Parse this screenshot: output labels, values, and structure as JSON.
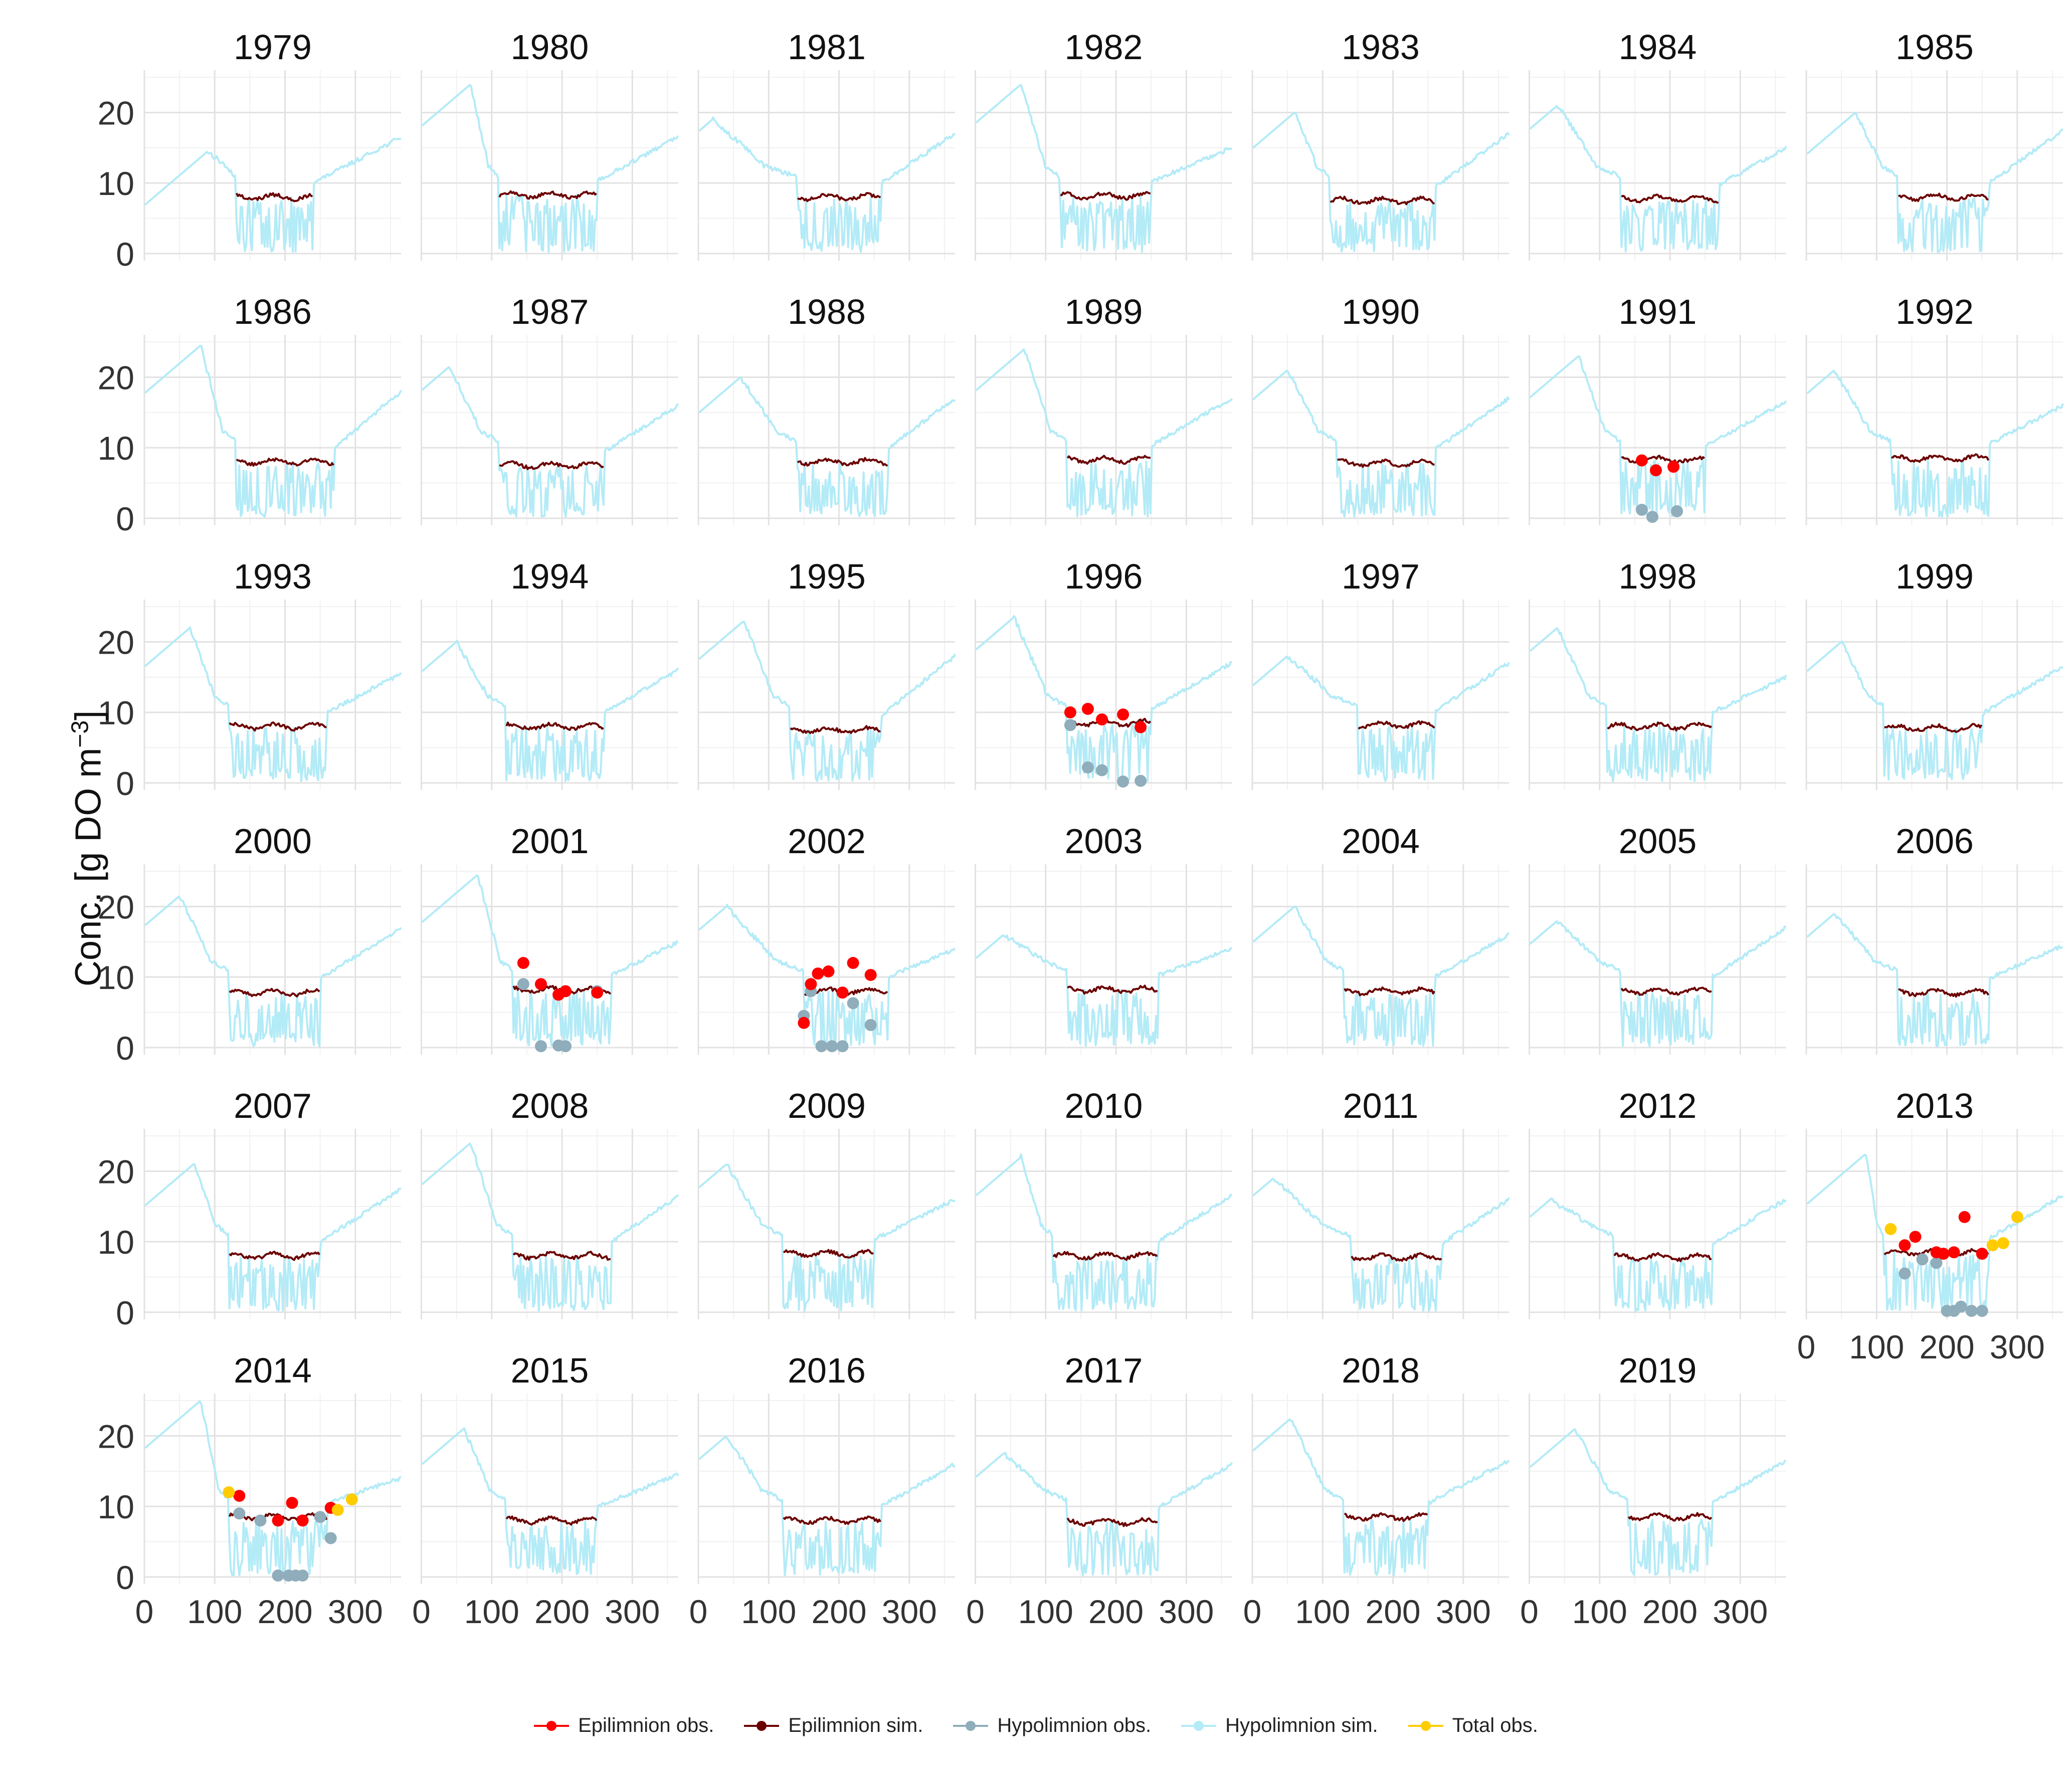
{
  "chart_data": {
    "type": "line",
    "ylabel": "Conc. [g DO m",
    "ylabel_sup": "−3",
    "ylabel_end": "]",
    "xlim": [
      0,
      365
    ],
    "ylim": [
      -1,
      26
    ],
    "xticks": [
      0,
      100,
      200,
      300
    ],
    "yticks": [
      0,
      10,
      20
    ],
    "grid": true,
    "legend_position": "bottom",
    "colors": {
      "epi_obs": "#ff0000",
      "epi_sim": "#6b0000",
      "hypo_obs": "#8fadbb",
      "hypo_sim": "#b3ebf7",
      "total_obs": "#ffcc00"
    },
    "legend": [
      {
        "key": "epi_obs",
        "label": "Epilimnion obs.",
        "style": "point"
      },
      {
        "key": "epi_sim",
        "label": "Epilimnion sim.",
        "style": "line"
      },
      {
        "key": "hypo_obs",
        "label": "Hypolimnion obs.",
        "style": "point"
      },
      {
        "key": "hypo_sim",
        "label": "Hypolimnion sim.",
        "style": "line"
      },
      {
        "key": "total_obs",
        "label": "Total obs.",
        "style": "point"
      }
    ],
    "panels": [
      {
        "year": "1979",
        "peak": 14.5,
        "peak_day": 90,
        "strat": [
          130,
          240
        ],
        "epi": 8.0,
        "end": 16.5
      },
      {
        "year": "1980",
        "peak": 24,
        "peak_day": 70,
        "strat": [
          110,
          250
        ],
        "epi": 8.3,
        "end": 16.5
      },
      {
        "year": "1981",
        "peak": 19,
        "peak_day": 20,
        "strat": [
          140,
          260
        ],
        "epi": 8.0,
        "end": 17
      },
      {
        "year": "1982",
        "peak": 24,
        "peak_day": 65,
        "strat": [
          120,
          250
        ],
        "epi": 8.2,
        "end": 15
      },
      {
        "year": "1983",
        "peak": 20,
        "peak_day": 60,
        "strat": [
          110,
          260
        ],
        "epi": 7.5,
        "end": 17
      },
      {
        "year": "1984",
        "peak": 21,
        "peak_day": 40,
        "strat": [
          130,
          270
        ],
        "epi": 7.8,
        "end": 15
      },
      {
        "year": "1985",
        "peak": 20,
        "peak_day": 70,
        "strat": [
          130,
          260
        ],
        "epi": 8.0,
        "end": 17.5
      },
      {
        "year": "1986",
        "peak": 24.5,
        "peak_day": 80,
        "strat": [
          130,
          270
        ],
        "epi": 8.0,
        "end": 18
      },
      {
        "year": "1987",
        "peak": 21.5,
        "peak_day": 40,
        "strat": [
          110,
          260
        ],
        "epi": 7.5,
        "end": 16
      },
      {
        "year": "1988",
        "peak": 20,
        "peak_day": 60,
        "strat": [
          140,
          270
        ],
        "epi": 8.0,
        "end": 17
      },
      {
        "year": "1989",
        "peak": 24,
        "peak_day": 70,
        "strat": [
          130,
          250
        ],
        "epi": 8.3,
        "end": 17
      },
      {
        "year": "1990",
        "peak": 21,
        "peak_day": 50,
        "strat": [
          120,
          260
        ],
        "epi": 7.8,
        "end": 17
      },
      {
        "year": "1991",
        "peak": 23,
        "peak_day": 70,
        "strat": [
          130,
          250
        ],
        "epi": 8.3,
        "end": 16.5,
        "epi_obs": [
          [
            160,
            8.2
          ],
          [
            180,
            6.8
          ],
          [
            205,
            7.3
          ]
        ],
        "hypo_obs": [
          [
            160,
            1.2
          ],
          [
            175,
            0.2
          ],
          [
            210,
            1.0
          ]
        ]
      },
      {
        "year": "1992",
        "peak": 21,
        "peak_day": 40,
        "strat": [
          120,
          260
        ],
        "epi": 8.5,
        "end": 16
      },
      {
        "year": "1993",
        "peak": 22,
        "peak_day": 65,
        "strat": [
          120,
          260
        ],
        "epi": 8.0,
        "end": 15.5
      },
      {
        "year": "1994",
        "peak": 20,
        "peak_day": 50,
        "strat": [
          120,
          260
        ],
        "epi": 8.0,
        "end": 16
      },
      {
        "year": "1995",
        "peak": 23,
        "peak_day": 65,
        "strat": [
          130,
          260
        ],
        "epi": 7.5,
        "end": 18
      },
      {
        "year": "1996",
        "peak": 23.5,
        "peak_day": 55,
        "strat": [
          130,
          250
        ],
        "epi": 8.5,
        "end": 17,
        "epi_obs": [
          [
            135,
            10.0
          ],
          [
            160,
            10.5
          ],
          [
            180,
            9.0
          ],
          [
            210,
            9.7
          ],
          [
            235,
            7.9
          ]
        ],
        "hypo_obs": [
          [
            135,
            8.2
          ],
          [
            160,
            2.2
          ],
          [
            180,
            1.8
          ],
          [
            210,
            0.2
          ],
          [
            235,
            0.3
          ]
        ]
      },
      {
        "year": "1997",
        "peak": 18,
        "peak_day": 50,
        "strat": [
          150,
          260
        ],
        "epi": 8.2,
        "end": 17
      },
      {
        "year": "1998",
        "peak": 22,
        "peak_day": 40,
        "strat": [
          110,
          260
        ],
        "epi": 8.0,
        "end": 15
      },
      {
        "year": "1999",
        "peak": 20,
        "peak_day": 50,
        "strat": [
          110,
          250
        ],
        "epi": 7.8,
        "end": 16.5
      },
      {
        "year": "2000",
        "peak": 21.5,
        "peak_day": 50,
        "strat": [
          120,
          250
        ],
        "epi": 7.8,
        "end": 17
      },
      {
        "year": "2001",
        "peak": 24.5,
        "peak_day": 80,
        "strat": [
          130,
          270
        ],
        "epi": 8.2,
        "end": 15,
        "epi_obs": [
          [
            145,
            12.0
          ],
          [
            170,
            9.0
          ],
          [
            195,
            7.5
          ],
          [
            205,
            8.0
          ],
          [
            250,
            7.8
          ]
        ],
        "hypo_obs": [
          [
            145,
            9.0
          ],
          [
            170,
            0.2
          ],
          [
            195,
            0.3
          ],
          [
            205,
            0.2
          ],
          [
            250,
            8.0
          ]
        ]
      },
      {
        "year": "2002",
        "peak": 20,
        "peak_day": 40,
        "strat": [
          150,
          270
        ],
        "epi": 8.0,
        "end": 14,
        "epi_obs": [
          [
            150,
            3.5
          ],
          [
            160,
            9.0
          ],
          [
            170,
            10.5
          ],
          [
            185,
            10.8
          ],
          [
            205,
            7.8
          ],
          [
            220,
            12.0
          ],
          [
            245,
            10.3
          ]
        ],
        "hypo_obs": [
          [
            150,
            4.5
          ],
          [
            160,
            8.0
          ],
          [
            175,
            0.2
          ],
          [
            190,
            0.2
          ],
          [
            205,
            0.2
          ],
          [
            220,
            6.3
          ],
          [
            245,
            3.2
          ]
        ]
      },
      {
        "year": "2003",
        "peak": 16,
        "peak_day": 40,
        "strat": [
          130,
          260
        ],
        "epi": 8.2,
        "end": 14
      },
      {
        "year": "2004",
        "peak": 20,
        "peak_day": 60,
        "strat": [
          130,
          260
        ],
        "epi": 8.0,
        "end": 16
      },
      {
        "year": "2005",
        "peak": 18,
        "peak_day": 40,
        "strat": [
          130,
          260
        ],
        "epi": 8.0,
        "end": 17
      },
      {
        "year": "2006",
        "peak": 19,
        "peak_day": 40,
        "strat": [
          130,
          260
        ],
        "epi": 7.8,
        "end": 14.5
      },
      {
        "year": "2007",
        "peak": 21,
        "peak_day": 70,
        "strat": [
          120,
          250
        ],
        "epi": 8.0,
        "end": 17.5
      },
      {
        "year": "2008",
        "peak": 24,
        "peak_day": 70,
        "strat": [
          130,
          270
        ],
        "epi": 8.0,
        "end": 16.5
      },
      {
        "year": "2009",
        "peak": 21,
        "peak_day": 40,
        "strat": [
          120,
          250
        ],
        "epi": 8.3,
        "end": 16
      },
      {
        "year": "2010",
        "peak": 22,
        "peak_day": 65,
        "strat": [
          110,
          260
        ],
        "epi": 8.0,
        "end": 16.5
      },
      {
        "year": "2011",
        "peak": 19,
        "peak_day": 30,
        "strat": [
          140,
          270
        ],
        "epi": 7.8,
        "end": 16
      },
      {
        "year": "2012",
        "peak": 16,
        "peak_day": 30,
        "strat": [
          120,
          260
        ],
        "epi": 7.8,
        "end": 16
      },
      {
        "year": "2013",
        "peak": 22.5,
        "peak_day": 85,
        "strat": [
          110,
          260
        ],
        "epi": 8.5,
        "end": 16.5,
        "epi_obs": [
          [
            140,
            9.5
          ],
          [
            155,
            10.7
          ],
          [
            185,
            8.5
          ],
          [
            195,
            8.3
          ],
          [
            210,
            8.5
          ],
          [
            225,
            13.5
          ],
          [
            250,
            8.3
          ]
        ],
        "hypo_obs": [
          [
            140,
            5.5
          ],
          [
            165,
            7.5
          ],
          [
            185,
            7.0
          ],
          [
            200,
            0.2
          ],
          [
            210,
            0.2
          ],
          [
            220,
            0.8
          ],
          [
            235,
            0.2
          ],
          [
            250,
            0.2
          ]
        ],
        "total_obs": [
          [
            120,
            11.8
          ],
          [
            265,
            9.5
          ],
          [
            280,
            9.8
          ],
          [
            300,
            13.5
          ]
        ]
      },
      {
        "year": "2014",
        "peak": 25,
        "peak_day": 80,
        "strat": [
          120,
          260
        ],
        "epi": 8.5,
        "end": 14,
        "epi_obs": [
          [
            135,
            11.5
          ],
          [
            190,
            8.0
          ],
          [
            210,
            10.5
          ],
          [
            225,
            8.0
          ],
          [
            265,
            9.8
          ]
        ],
        "hypo_obs": [
          [
            135,
            9.0
          ],
          [
            165,
            8.0
          ],
          [
            190,
            0.2
          ],
          [
            205,
            0.2
          ],
          [
            215,
            0.2
          ],
          [
            225,
            0.2
          ],
          [
            250,
            8.5
          ],
          [
            265,
            5.5
          ]
        ],
        "total_obs": [
          [
            120,
            12.0
          ],
          [
            275,
            9.5
          ],
          [
            295,
            11.0
          ]
        ]
      },
      {
        "year": "2015",
        "peak": 21,
        "peak_day": 60,
        "strat": [
          120,
          250
        ],
        "epi": 8.0,
        "end": 14.5
      },
      {
        "year": "2016",
        "peak": 20,
        "peak_day": 40,
        "strat": [
          120,
          260
        ],
        "epi": 8.0,
        "end": 16
      },
      {
        "year": "2017",
        "peak": 17.5,
        "peak_day": 40,
        "strat": [
          130,
          260
        ],
        "epi": 7.8,
        "end": 16
      },
      {
        "year": "2018",
        "peak": 22.5,
        "peak_day": 55,
        "strat": [
          130,
          250
        ],
        "epi": 8.5,
        "end": 16.5
      },
      {
        "year": "2019",
        "peak": 21,
        "peak_day": 65,
        "strat": [
          140,
          260
        ],
        "epi": 8.5,
        "end": 16.5
      }
    ]
  }
}
